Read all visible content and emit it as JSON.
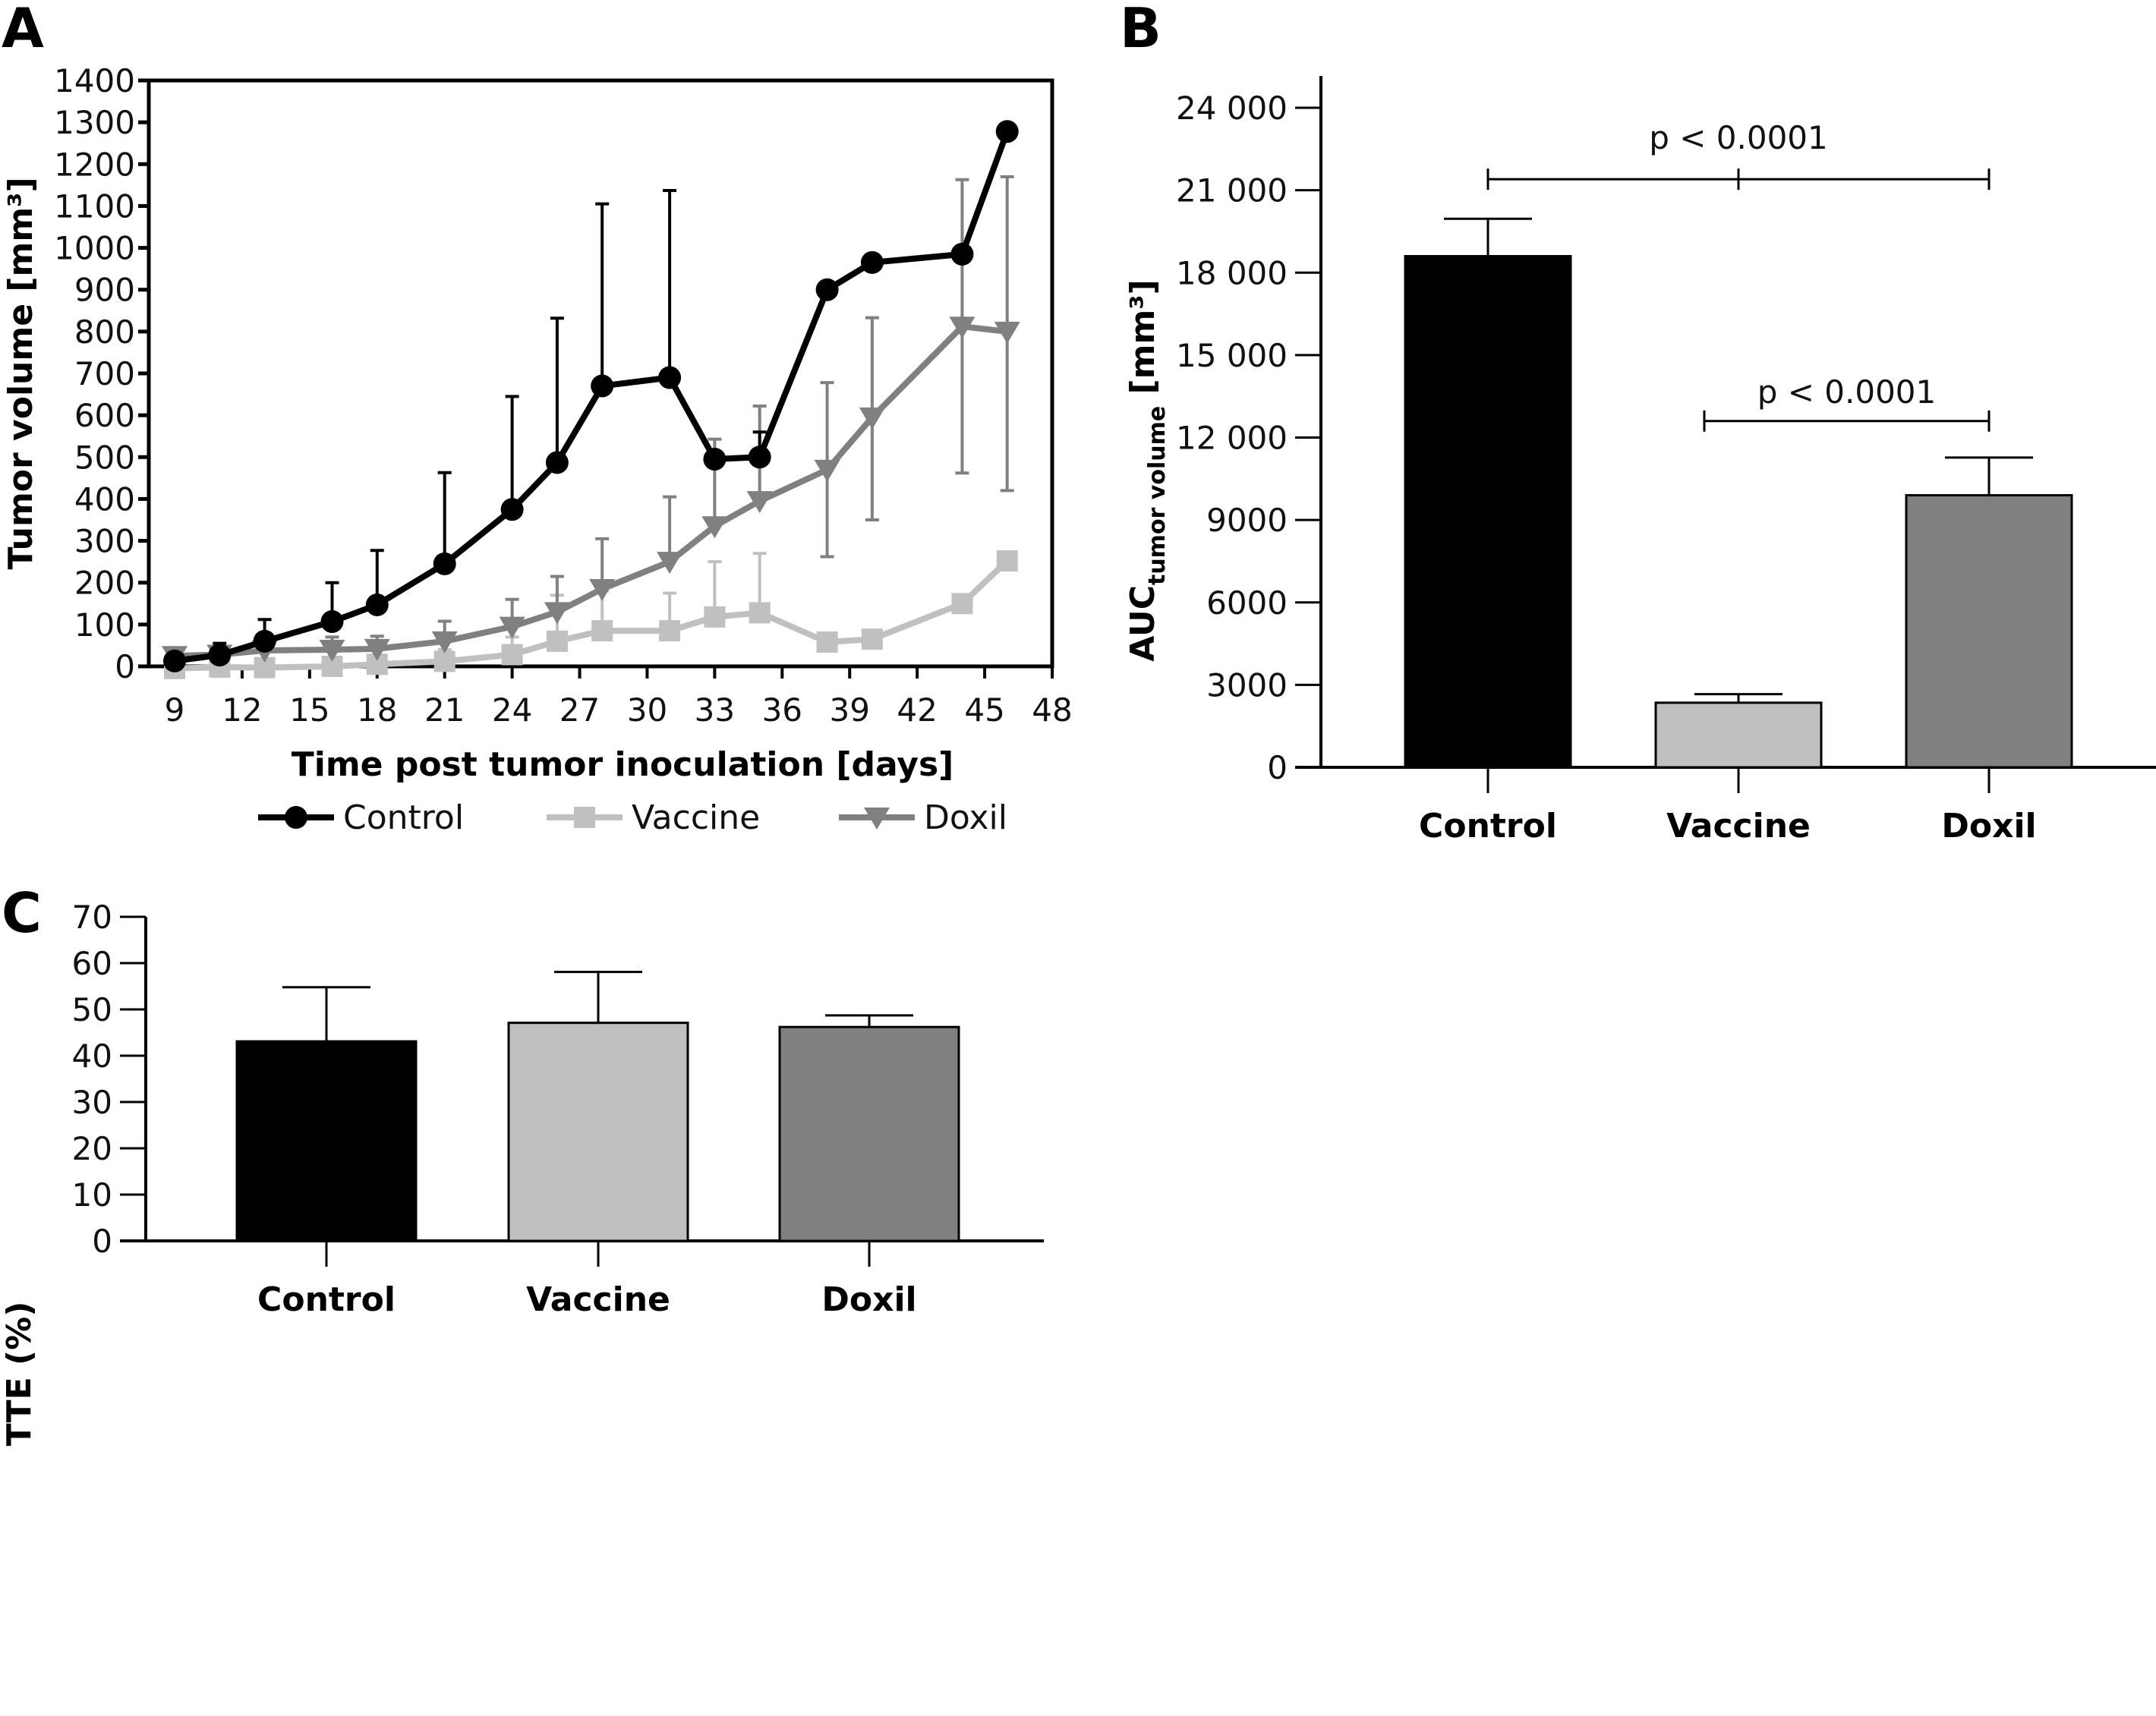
{
  "panel_labels": [
    "A",
    "B",
    "C"
  ],
  "colors": {
    "Control": "#000000",
    "Vaccine": "#c0c0c0",
    "Doxil": "#808080"
  },
  "chart_data": [
    {
      "panel": "A",
      "type": "line",
      "title": "",
      "xlabel": "Time post tumor inoculation [days]",
      "ylabel": "Tumor volume [mm³]",
      "xlim": [
        7.5,
        48
      ],
      "ylim": [
        0,
        1400
      ],
      "xticks": [
        9,
        12,
        15,
        18,
        21,
        24,
        27,
        30,
        33,
        36,
        39,
        42,
        45,
        48
      ],
      "yticks": [
        0,
        100,
        200,
        300,
        400,
        500,
        600,
        700,
        800,
        900,
        1000,
        1100,
        1200,
        1300,
        1400
      ],
      "legend_position": "bottom",
      "x": [
        9,
        11,
        13,
        16,
        18,
        21,
        24,
        26,
        28,
        31,
        33,
        35,
        38,
        40,
        44,
        46
      ],
      "series": [
        {
          "name": "Control",
          "marker": "circle",
          "color": "#000000",
          "values": [
            13,
            27,
            60,
            107,
            147,
            245,
            375,
            487,
            670,
            690,
            495,
            500,
            900,
            965,
            985,
            1278
          ],
          "error_upper": [
            20,
            55,
            112,
            200,
            277,
            463,
            645,
            832,
            1105,
            1137,
            510,
            560,
            null,
            null,
            null,
            null
          ]
        },
        {
          "name": "Vaccine",
          "marker": "square",
          "color": "#c0c0c0",
          "values": [
            -5,
            -2,
            -3,
            0,
            5,
            12,
            28,
            60,
            85,
            85,
            118,
            128,
            58,
            65,
            150,
            252
          ],
          "error_upper": [
            5,
            10,
            10,
            20,
            25,
            40,
            70,
            170,
            180,
            175,
            250,
            270,
            null,
            null,
            null,
            null
          ]
        },
        {
          "name": "Doxil",
          "marker": "triangle-down",
          "color": "#808080",
          "values": [
            25,
            28,
            38,
            40,
            42,
            60,
            95,
            130,
            185,
            250,
            335,
            395,
            470,
            595,
            812,
            800
          ],
          "error_upper": [
            30,
            40,
            50,
            70,
            72,
            108,
            160,
            215,
            305,
            405,
            543,
            622,
            678,
            833,
            1163,
            1170
          ],
          "error_lower": [
            null,
            null,
            null,
            null,
            null,
            null,
            null,
            null,
            null,
            null,
            null,
            null,
            262,
            350,
            462,
            420
          ]
        }
      ]
    },
    {
      "panel": "B",
      "type": "bar",
      "ylabel": "AUC tumor volume [mm³]",
      "ylabel_main": "AUC",
      "ylabel_sub": "tumor volume",
      "ylabel_unit": " [mm³]",
      "categories": [
        "Control",
        "Vaccine",
        "Doxil"
      ],
      "values": [
        18600,
        2350,
        9900
      ],
      "error_upper": [
        19960,
        2660,
        11270
      ],
      "ylim": [
        0,
        25000
      ],
      "yticks": [
        0,
        3000,
        6000,
        9000,
        12000,
        15000,
        18000,
        21000,
        24000
      ],
      "ytick_labels": [
        "0",
        "3000",
        "6000",
        "9000",
        "12 000",
        "15 000",
        "18 000",
        "21 000",
        "24 000"
      ],
      "annotations": [
        {
          "text": "p < 0.0001",
          "from": "Control",
          "to": "Doxil",
          "mid_tick": "Vaccine",
          "level": 21400
        },
        {
          "text": "p < 0.0001",
          "from_x": 1.85,
          "to": "Doxil",
          "level": 12600
        }
      ]
    },
    {
      "panel": "C",
      "type": "bar",
      "ylabel": "TTE (%)",
      "categories": [
        "Control",
        "Vaccine",
        "Doxil"
      ],
      "values": [
        43.1,
        47.1,
        46.2
      ],
      "error_upper": [
        54.8,
        58.1,
        48.7
      ],
      "ylim": [
        0,
        70
      ],
      "yticks": [
        0,
        10,
        20,
        30,
        40,
        50,
        60,
        70
      ]
    }
  ]
}
